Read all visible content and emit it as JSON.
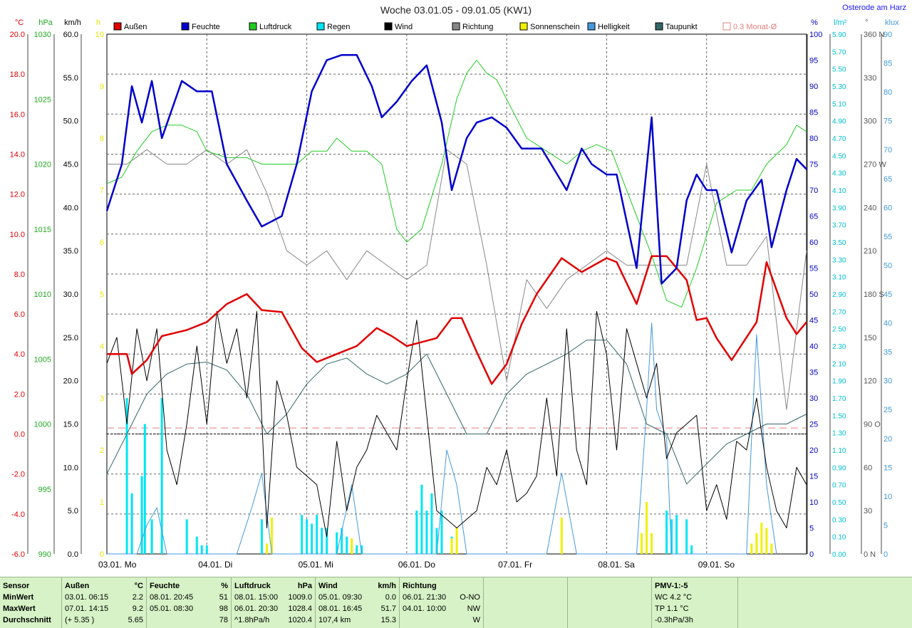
{
  "header": {
    "title": "Woche 03.01.05 - 09.01.05 (KW1)",
    "location": "Osterode am Harz"
  },
  "colors": {
    "temp": "#e00000",
    "humidity": "#0000cc",
    "pressure": "#22cc22",
    "rain": "#00e5f5",
    "wind": "#000000",
    "direction": "#888888",
    "sun": "#f0f000",
    "light": "#4499dd",
    "dewpoint": "#336666",
    "avg": "#e08080"
  },
  "legend": [
    {
      "label": "Außen",
      "color": "#e00000"
    },
    {
      "label": "Feuchte",
      "color": "#0000cc"
    },
    {
      "label": "Luftdruck",
      "color": "#22cc22"
    },
    {
      "label": "Regen",
      "color": "#00e5f5"
    },
    {
      "label": "Wind",
      "color": "#000000"
    },
    {
      "label": "Richtung",
      "color": "#888888"
    },
    {
      "label": "Sonnenschein",
      "color": "#f0f000"
    },
    {
      "label": "Helligkeit",
      "color": "#4499dd"
    },
    {
      "label": "Taupunkt",
      "color": "#336666"
    },
    {
      "label": "0.3 Monat-Ø",
      "color": "#e08080",
      "outline": true
    }
  ],
  "axes": {
    "left": [
      {
        "unit": "°C",
        "color": "#e00000",
        "ticks": [
          "20.0",
          "18.0",
          "16.0",
          "14.0",
          "12.0",
          "10.0",
          "8.0",
          "6.0",
          "4.0",
          "2.0",
          "0.0",
          "-2.0",
          "-4.0",
          "-6.0"
        ]
      },
      {
        "unit": "hPa",
        "color": "#22aa22",
        "ticks": [
          "1030",
          "1025",
          "1020",
          "1015",
          "1010",
          "1005",
          "1000",
          "995",
          "990"
        ]
      },
      {
        "unit": "km/h",
        "color": "#000000",
        "ticks": [
          "60.0",
          "55.0",
          "50.0",
          "45.0",
          "40.0",
          "35.0",
          "30.0",
          "25.0",
          "20.0",
          "15.0",
          "10.0",
          "5.0",
          "0.0"
        ]
      },
      {
        "unit": "h",
        "color": "#e8e800",
        "ticks": [
          "10",
          "9",
          "8",
          "7",
          "6",
          "5",
          "4",
          "3",
          "2",
          "1",
          "0"
        ]
      }
    ],
    "right": [
      {
        "unit": "%",
        "color": "#0000cc",
        "ticks": [
          "100",
          "95",
          "90",
          "85",
          "80",
          "75",
          "70",
          "65",
          "60",
          "55",
          "50",
          "45",
          "40",
          "35",
          "30",
          "25",
          "20",
          "15",
          "10",
          "5",
          "0"
        ]
      },
      {
        "unit": "l/m²",
        "color": "#00c0d0",
        "ticks": [
          "5.90",
          "5.70",
          "5.50",
          "5.30",
          "5.10",
          "4.90",
          "4.70",
          "4.50",
          "4.30",
          "4.10",
          "3.90",
          "3.70",
          "3.50",
          "3.30",
          "3.10",
          "2.90",
          "2.70",
          "2.50",
          "2.30",
          "2.10",
          "1.90",
          "1.70",
          "1.50",
          "1.30",
          "1.10",
          "0.90",
          "0.70",
          "0.50",
          "0.30",
          "0.10",
          "0.00"
        ]
      },
      {
        "unit": "°",
        "color": "#555555",
        "ticks": [
          "360 N",
          "330",
          "300",
          "270 W",
          "240",
          "210",
          "180 S",
          "150",
          "120",
          "90 O",
          "60",
          "30",
          "0 N"
        ]
      },
      {
        "unit": "klux",
        "color": "#4499dd",
        "ticks": [
          "90",
          "85",
          "80",
          "75",
          "70",
          "65",
          "60",
          "55",
          "50",
          "45",
          "40",
          "35",
          "30",
          "25",
          "20",
          "15",
          "10",
          "5",
          "0"
        ]
      }
    ],
    "days": [
      "03.01. Mo",
      "04.01. Di",
      "05.01. Mi",
      "06.01. Do",
      "07.01. Fr",
      "08.01. Sa",
      "09.01. So"
    ]
  },
  "chart_data": {
    "type": "line",
    "x_unit": "day index (0 = 03.01. 00:00)",
    "series": [
      {
        "name": "Außen",
        "unit": "°C",
        "x": [
          0,
          0.2,
          0.25,
          0.4,
          0.55,
          0.8,
          1.0,
          1.2,
          1.4,
          1.55,
          1.75,
          1.95,
          2.1,
          2.3,
          2.5,
          2.7,
          2.85,
          3.0,
          3.15,
          3.3,
          3.45,
          3.55,
          3.7,
          3.85,
          4.0,
          4.15,
          4.3,
          4.55,
          4.75,
          5.0,
          5.1,
          5.3,
          5.45,
          5.6,
          5.8,
          5.9,
          6.0,
          6.1,
          6.25,
          6.5,
          6.6,
          6.8,
          6.9,
          7.0
        ],
        "values": [
          4.0,
          4.0,
          3.0,
          3.7,
          4.9,
          5.2,
          5.6,
          6.5,
          7.0,
          6.2,
          6.1,
          4.3,
          3.6,
          4.0,
          4.4,
          5.3,
          4.9,
          4.4,
          4.6,
          4.8,
          5.8,
          5.8,
          4.1,
          2.5,
          3.5,
          5.5,
          7.0,
          8.8,
          8.1,
          8.8,
          8.6,
          6.5,
          8.9,
          8.9,
          7.7,
          5.7,
          5.8,
          4.8,
          3.7,
          5.6,
          8.6,
          5.8,
          5.0,
          5.6
        ]
      },
      {
        "name": "Feuchte",
        "unit": "%",
        "x": [
          0,
          0.15,
          0.25,
          0.35,
          0.45,
          0.55,
          0.75,
          0.9,
          1.05,
          1.2,
          1.4,
          1.55,
          1.75,
          1.9,
          2.05,
          2.2,
          2.35,
          2.5,
          2.65,
          2.75,
          2.9,
          3.05,
          3.2,
          3.35,
          3.45,
          3.6,
          3.7,
          3.85,
          4.0,
          4.15,
          4.35,
          4.6,
          4.75,
          4.85,
          5.0,
          5.1,
          5.3,
          5.45,
          5.55,
          5.7,
          5.8,
          5.9,
          6.0,
          6.1,
          6.25,
          6.4,
          6.55,
          6.65,
          6.8,
          6.9,
          7.0
        ],
        "values": [
          66,
          75,
          90,
          83,
          91,
          80,
          91,
          89,
          89,
          75,
          68,
          63,
          65,
          75,
          89,
          95,
          96,
          96,
          90,
          84,
          87,
          91,
          94,
          83,
          70,
          80,
          83,
          84,
          82,
          78,
          78,
          70,
          78,
          75,
          73,
          73,
          55,
          84,
          52,
          55,
          68,
          73,
          70,
          70,
          58,
          68,
          72,
          59,
          70,
          76,
          74
        ]
      },
      {
        "name": "Luftdruck",
        "unit": "hPa",
        "x": [
          0,
          0.15,
          0.3,
          0.45,
          0.6,
          0.75,
          0.9,
          1.0,
          1.2,
          1.4,
          1.55,
          1.75,
          1.9,
          2.05,
          2.2,
          2.3,
          2.45,
          2.6,
          2.75,
          2.9,
          3.0,
          3.15,
          3.35,
          3.5,
          3.6,
          3.7,
          3.8,
          3.9,
          4.0,
          4.2,
          4.4,
          4.6,
          4.75,
          4.9,
          5.05,
          5.25,
          5.45,
          5.6,
          5.75,
          5.9,
          6.1,
          6.3,
          6.45,
          6.6,
          6.8,
          6.9,
          7.0
        ],
        "values": [
          1018.5,
          1019,
          1021,
          1022.5,
          1023,
          1023,
          1022.5,
          1021,
          1020.5,
          1020.5,
          1020,
          1020,
          1020,
          1021,
          1021,
          1022,
          1021,
          1021,
          1020,
          1015,
          1014,
          1015,
          1020,
          1025,
          1027,
          1028,
          1027,
          1026.5,
          1025,
          1022,
          1021,
          1020,
          1021,
          1021.5,
          1021,
          1017,
          1013,
          1009.5,
          1009,
          1012,
          1017,
          1018,
          1018,
          1020,
          1021.5,
          1023,
          1022.5
        ]
      },
      {
        "name": "Wind",
        "unit": "km/h",
        "x": [
          0,
          0.1,
          0.2,
          0.3,
          0.4,
          0.5,
          0.6,
          0.7,
          0.8,
          0.9,
          1.0,
          1.1,
          1.2,
          1.3,
          1.4,
          1.5,
          1.6,
          1.7,
          1.8,
          1.9,
          2.0,
          2.1,
          2.2,
          2.3,
          2.4,
          2.5,
          2.6,
          2.7,
          2.8,
          2.9,
          3.0,
          3.1,
          3.2,
          3.3,
          3.4,
          3.5,
          3.6,
          3.7,
          3.8,
          3.9,
          4.0,
          4.1,
          4.2,
          4.3,
          4.4,
          4.5,
          4.6,
          4.7,
          4.8,
          4.9,
          5.0,
          5.1,
          5.2,
          5.3,
          5.4,
          5.5,
          5.6,
          5.7,
          5.8,
          5.9,
          6.0,
          6.1,
          6.2,
          6.3,
          6.4,
          6.5,
          6.6,
          6.7,
          6.8,
          6.9,
          7.0
        ],
        "values": [
          22,
          25,
          15,
          26,
          20,
          26,
          12,
          8,
          15,
          24,
          15,
          28,
          22,
          26,
          18,
          28,
          3,
          20,
          16,
          10,
          9,
          8,
          2,
          13,
          5,
          10,
          12,
          16,
          14,
          12,
          20,
          27,
          16,
          5,
          4,
          3,
          4,
          5,
          10,
          8,
          12,
          6,
          7,
          9,
          18,
          9,
          26,
          12,
          8,
          28,
          23,
          12,
          26,
          22,
          18,
          22,
          11,
          14,
          15,
          16,
          5,
          8,
          4,
          13,
          12,
          18,
          10,
          5,
          3,
          10,
          8
        ]
      },
      {
        "name": "Richtung",
        "unit": "°",
        "x": [
          0,
          0.2,
          0.4,
          0.6,
          0.8,
          1.0,
          1.2,
          1.4,
          1.6,
          1.8,
          2.0,
          2.2,
          2.4,
          2.6,
          2.8,
          3.0,
          3.2,
          3.4,
          3.6,
          3.8,
          4.0,
          4.2,
          4.4,
          4.6,
          4.8,
          5.0,
          5.2,
          5.4,
          5.6,
          5.8,
          6.0,
          6.2,
          6.4,
          6.6,
          6.8,
          7.0
        ],
        "values": [
          270,
          270,
          280,
          270,
          270,
          280,
          270,
          280,
          250,
          210,
          200,
          210,
          190,
          210,
          200,
          190,
          200,
          280,
          270,
          200,
          120,
          190,
          170,
          190,
          200,
          210,
          200,
          200,
          200,
          200,
          270,
          200,
          200,
          220,
          100,
          210
        ]
      },
      {
        "name": "Taupunkt",
        "unit": "°C",
        "x": [
          0,
          0.2,
          0.4,
          0.6,
          0.8,
          1.0,
          1.2,
          1.4,
          1.6,
          1.8,
          2.0,
          2.2,
          2.4,
          2.6,
          2.8,
          3.0,
          3.2,
          3.4,
          3.6,
          3.8,
          4.0,
          4.2,
          4.4,
          4.6,
          4.8,
          5.0,
          5.2,
          5.4,
          5.6,
          5.8,
          6.0,
          6.2,
          6.4,
          6.6,
          6.8,
          7.0
        ],
        "values": [
          -2,
          0,
          2,
          3,
          3.5,
          3.6,
          3.2,
          2,
          0,
          1,
          2.5,
          3.5,
          3.8,
          3,
          2.5,
          3,
          4,
          2,
          0,
          0,
          2,
          3,
          3.5,
          4,
          4.7,
          4.7,
          3.5,
          0.5,
          0,
          -2.5,
          -1.5,
          -0.5,
          0,
          0.5,
          0.5,
          1
        ]
      },
      {
        "name": "Regen",
        "unit": "l/m²",
        "type": "bar",
        "x": [
          0.2,
          0.25,
          0.35,
          0.38,
          0.45,
          0.55,
          0.8,
          0.9,
          0.95,
          1.0,
          1.55,
          1.65,
          1.95,
          2.0,
          2.05,
          2.1,
          2.15,
          2.2,
          2.3,
          2.35,
          2.4,
          2.45,
          2.5,
          2.55,
          3.1,
          3.15,
          3.2,
          3.25,
          3.3,
          3.35,
          3.45,
          3.5,
          5.6,
          5.65,
          5.7,
          5.8,
          5.85
        ],
        "values": [
          1.8,
          0.7,
          0.9,
          1.5,
          0.4,
          1.8,
          0.4,
          0.2,
          0.1,
          0.1,
          0.4,
          0.2,
          0.45,
          0.4,
          0.35,
          0.45,
          0.3,
          0.3,
          0.25,
          0.3,
          0.2,
          0.1,
          0.1,
          0.1,
          0.5,
          0.8,
          0.5,
          0.7,
          0.3,
          0.5,
          0.2,
          0.1,
          0.5,
          0.4,
          0.45,
          0.4,
          0.1
        ]
      },
      {
        "name": "Sonnenschein",
        "unit": "h",
        "type": "bar",
        "x": [
          1.6,
          1.65,
          2.45,
          3.45,
          3.5,
          4.55,
          5.35,
          5.4,
          5.45,
          6.45,
          6.5,
          6.55,
          6.6,
          6.65
        ],
        "values": [
          0.2,
          0.7,
          0.3,
          0.3,
          0.5,
          0.7,
          0.4,
          1.0,
          0.4,
          0.2,
          0.4,
          0.6,
          0.5,
          0.2
        ]
      },
      {
        "name": "Helligkeit",
        "unit": "klux",
        "x": [
          0,
          0.3,
          0.4,
          0.5,
          0.6,
          1.3,
          1.45,
          1.55,
          1.65,
          2.3,
          2.45,
          2.55,
          3.3,
          3.4,
          3.5,
          3.6,
          4.4,
          4.55,
          4.7,
          5.3,
          5.4,
          5.45,
          5.5,
          5.6,
          5.65,
          6.4,
          6.45,
          6.5,
          6.55,
          6.6,
          6.7
        ],
        "values": [
          0,
          0,
          5,
          8,
          0,
          0,
          8,
          14,
          0,
          0,
          12,
          0,
          0,
          18,
          12,
          0,
          0,
          14,
          0,
          0,
          25,
          40,
          25,
          20,
          0,
          0,
          20,
          38,
          25,
          12,
          0
        ]
      }
    ],
    "monthly_avg_c": 0.3
  },
  "table": {
    "rows": [
      "Sensor",
      "MinWert",
      "MaxWert",
      "Durchschnitt"
    ],
    "cols": [
      {
        "title": "Außen",
        "unit": "°C",
        "min_time": "03.01.  06:15",
        "min": "2.2",
        "max_time": "07.01.  14:15",
        "max": "9.2",
        "avg_note": "(+ 5.35 )",
        "avg": "5.65"
      },
      {
        "title": "Feuchte",
        "unit": "%",
        "min_time": "08.01.  20:45",
        "min": "51",
        "max_time": "05.01.  08:30",
        "max": "98",
        "avg_note": "",
        "avg": "78"
      },
      {
        "title": "Luftdruck",
        "unit": "hPa",
        "min_time": "08.01.  15:00",
        "min": "1009.0",
        "max_time": "06.01.  20:30",
        "max": "1028.4",
        "avg_note": "^1.8hPa/h",
        "avg": "1020.4"
      },
      {
        "title": "Wind",
        "unit": "km/h",
        "min_time": "05.01.  09:30",
        "min": "0.0",
        "max_time": "08.01.  16:45",
        "max": "51.7",
        "avg_note": "107,4 km",
        "avg": "15.3"
      },
      {
        "title": "Richtung",
        "unit": "",
        "min_time": "06.01.  21:30",
        "min": "O-NO",
        "max_time": "04.01.  10:00",
        "max": "NW",
        "avg_note": "",
        "avg": "W"
      }
    ],
    "pmv": {
      "title": "PMV-1:-5",
      "wc": "WC 4.2 °C",
      "tp": "TP 1.1 °C",
      "trend": "-0.3hPa/3h"
    }
  }
}
